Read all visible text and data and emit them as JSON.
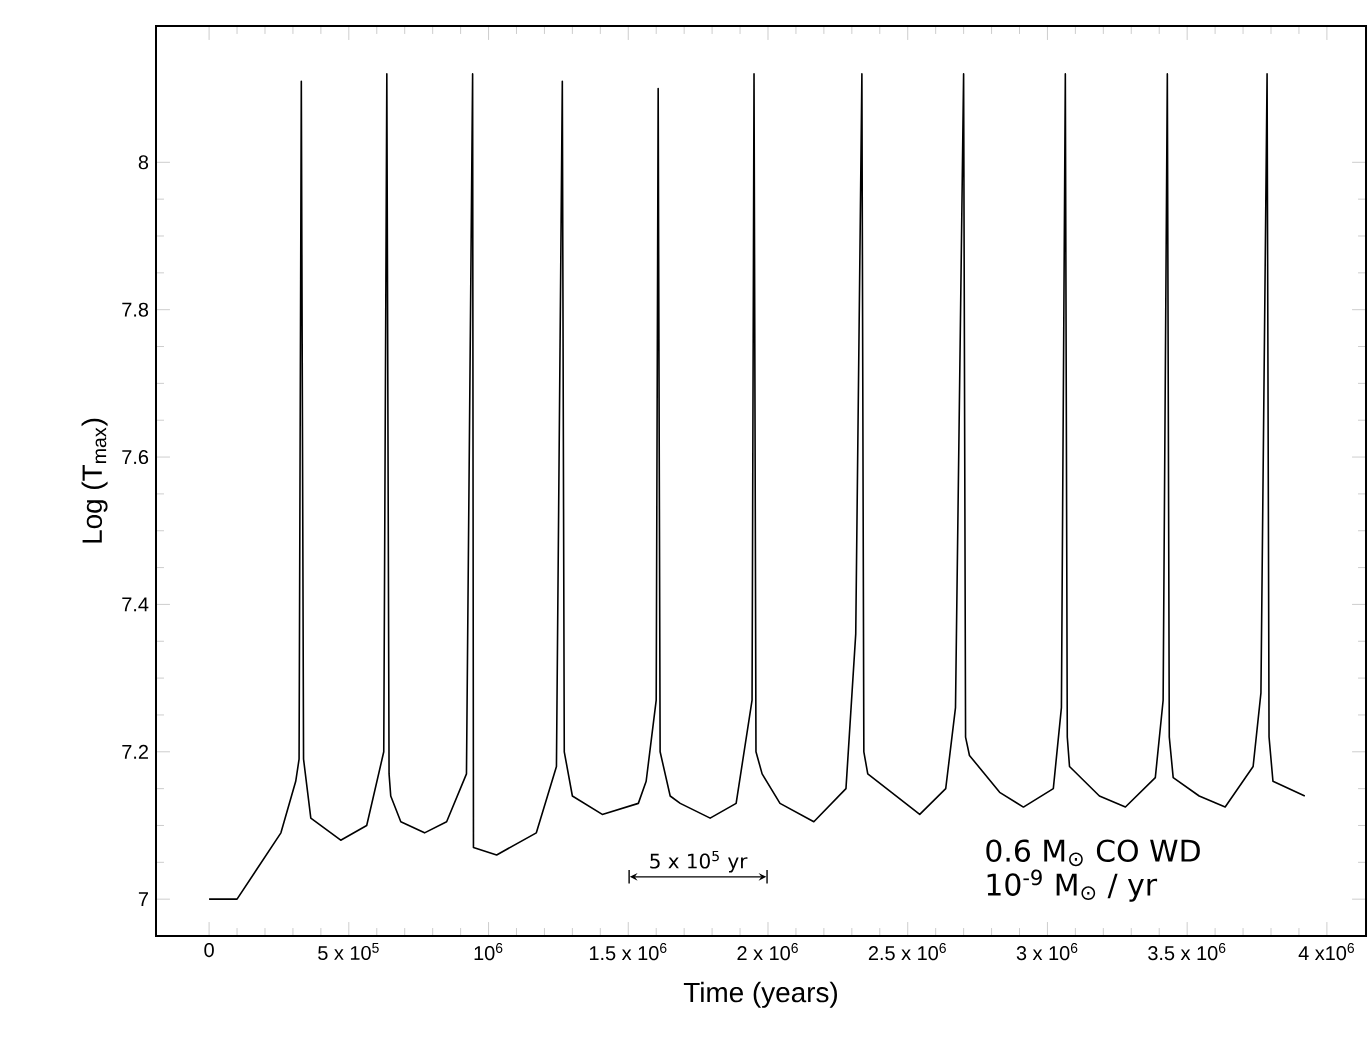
{
  "chart_data": {
    "type": "line",
    "xlabel": "Time (years)",
    "ylabel": "Log (T$_{max}$)",
    "xlim": [
      -190000,
      4140000
    ],
    "ylim": [
      6.95,
      8.185
    ],
    "xticks": [
      0,
      {
        "value": 500000,
        "label": "5 x 10$^{5}$"
      },
      {
        "value": 1000000,
        "label": "10$^{6}$"
      },
      {
        "value": 1500000,
        "label": "1.5 x 10$^{6}$"
      },
      {
        "value": 2000000,
        "label": "2 x 10$^{6}$"
      },
      {
        "value": 2500000,
        "label": "2.5 x 10$^{6}$"
      },
      {
        "value": 3000000,
        "label": "3 x 10$^{6}$"
      },
      {
        "value": 3500000,
        "label": "3.5 x 10$^{6}$"
      },
      {
        "value": 4000000,
        "label": "4 x10$^{6}$"
      }
    ],
    "yticks": [
      7,
      7.2,
      7.4,
      7.6,
      7.8,
      8
    ],
    "grid": false,
    "marker": "none",
    "line_style": "solid",
    "annotations": [
      "5 x 10$^{5}$ yr",
      "0.6 M$_{⊙}$ CO WD",
      "10$^{-9}$ M$_{⊙}$ / yr"
    ],
    "series": [
      {
        "color": "#000000",
        "x": [
          0,
          100000,
          257000,
          310000,
          322000,
          330000,
          338000,
          364000,
          471000,
          564000,
          625000,
          636000,
          644000,
          650000,
          686000,
          771000,
          850000,
          921000,
          943000,
          946000,
          1029000,
          1171000,
          1243000,
          1264000,
          1271000,
          1300000,
          1407000,
          1536000,
          1564000,
          1600000,
          1607000,
          1614000,
          1650000,
          1686000,
          1793000,
          1886000,
          1943000,
          1950000,
          1957000,
          1979000,
          2043000,
          2164000,
          2279000,
          2314000,
          2336000,
          2343000,
          2357000,
          2543000,
          2636000,
          2671000,
          2700000,
          2707000,
          2721000,
          2829000,
          2914000,
          3021000,
          3050000,
          3064000,
          3071000,
          3079000,
          3186000,
          3279000,
          3386000,
          3414000,
          3429000,
          3436000,
          3450000,
          3543000,
          3636000,
          3736000,
          3764000,
          3786000,
          3793000,
          3807000,
          3921000
        ],
        "values": [
          7.0,
          7.0,
          7.09,
          7.16,
          7.19,
          8.11,
          7.19,
          7.11,
          7.08,
          7.1,
          7.2,
          8.12,
          7.17,
          7.14,
          7.105,
          7.09,
          7.105,
          7.17,
          8.12,
          7.07,
          7.06,
          7.09,
          7.18,
          8.11,
          7.2,
          7.14,
          7.115,
          7.13,
          7.16,
          7.27,
          8.1,
          7.2,
          7.14,
          7.13,
          7.11,
          7.13,
          7.27,
          8.12,
          7.2,
          7.17,
          7.13,
          7.105,
          7.15,
          7.36,
          8.12,
          7.2,
          7.17,
          7.115,
          7.15,
          7.26,
          8.12,
          7.22,
          7.195,
          7.145,
          7.125,
          7.15,
          7.26,
          8.12,
          7.22,
          7.18,
          7.14,
          7.125,
          7.165,
          7.27,
          8.12,
          7.22,
          7.165,
          7.14,
          7.125,
          7.18,
          7.28,
          8.12,
          7.22,
          7.16,
          7.14
        ]
      }
    ]
  }
}
